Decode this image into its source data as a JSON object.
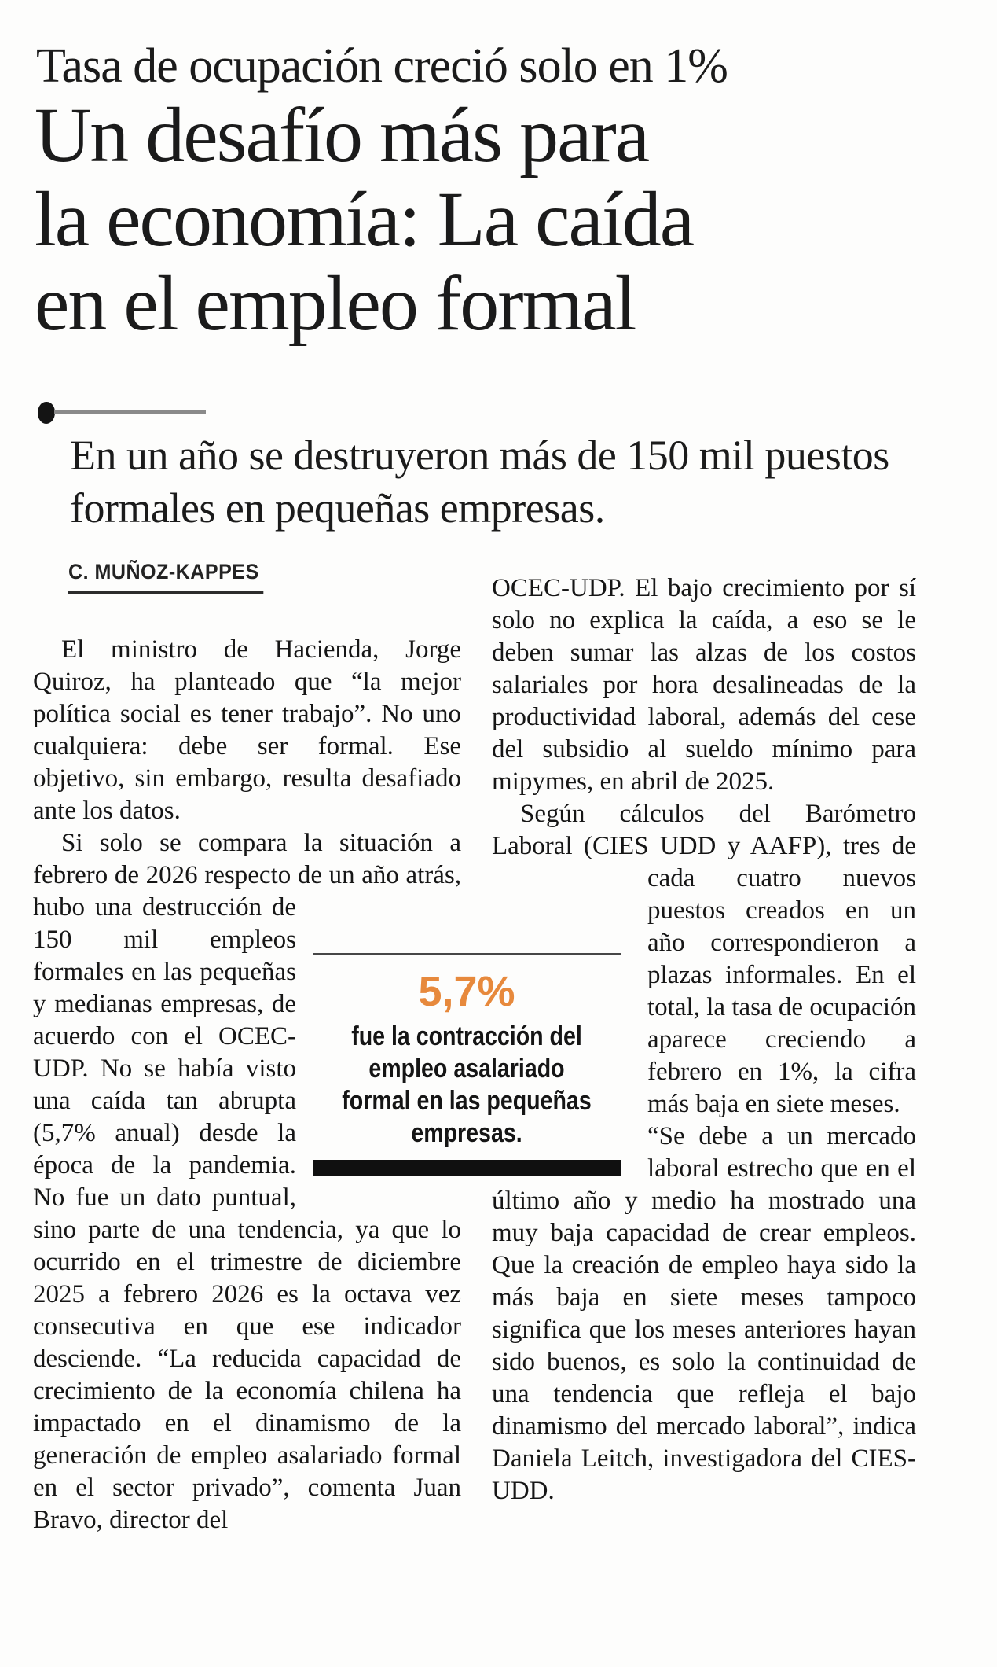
{
  "page": {
    "background": "#fdfdfc",
    "text_color": "#161616",
    "accent_orange": "#e7893c",
    "bar_color": "#101010"
  },
  "kicker": "Tasa de ocupación creció solo en 1%",
  "headline_lines": [
    "Un desafío más para",
    "la economía: La caída",
    "en el empleo formal"
  ],
  "deck": "En un año se destruyeron más de 150 mil puestos formales en pequeñas empresas.",
  "byline": "C. MUÑOZ-KAPPES",
  "article": {
    "left_column": {
      "p1": "El ministro de Hacienda, Jorge Quiroz, ha planteado que “la mejor política social es tener trabajo”. No uno cualquiera: debe ser formal. Ese objetivo, sin embargo, resulta desafiado ante los datos.",
      "p2_before_wrap": "Si solo se compara la situación a febrero de 2026 respecto de un año atrás, hubo una destrucción ",
      "p2_after_wrap": "de 150 mil empleos formales en las pequeñas y medianas empresas, de acuerdo con el OCEC-UDP. No se había visto una caída tan abrupta (5,7% anual) desde la época de la pandemia. No fue un dato puntual, sino parte de una tendencia, ya que lo ocurrido en el trimestre de diciembre 2025 a febrero 2026 es la octava vez consecutiva en que ese indicador desciende. “La reducida capacidad de crecimiento de la economía chilena ha impactado en el dinamismo de la generación de empleo asalariado formal en el sector privado”, comenta Juan Bravo, director del"
    },
    "right_column": {
      "p1": "OCEC-UDP. El bajo crecimiento por sí solo no explica la caída, a eso se le deben sumar las alzas de los costos salariales por hora desalineadas de la productividad laboral, además del cese del subsidio al sueldo mínimo para mipymes, en abril de 2025.",
      "p2_before_wrap": "Según cálculos del Barómetro Laboral (CIES UDD y AAFP), tres de cada cuatro nuevos ",
      "p2_after_wrap": "puestos creados en un año correspondieron a plazas informales. En el total, la tasa de ocupación aparece creciendo a febrero en 1%, la cifra más baja en siete meses.",
      "p3": "“Se debe a un mercado laboral estrecho que en el último año y medio ha mostrado una muy baja capacidad de crear empleos. Que la creación de empleo haya sido la más baja en siete meses tampoco significa que los meses anteriores hayan sido buenos, es solo la continuidad de una tendencia que refleja el bajo dinamismo del mercado laboral”, indica Daniela Leitch, investigadora del CIES-UDD."
    }
  },
  "pullquote": {
    "number": "5,7%",
    "lines": [
      "fue la contracción del",
      "empleo asalariado",
      "formal en las pequeñas",
      "empresas."
    ],
    "full_text": "5,7% fue la contracción del empleo asalariado formal en las pequeñas empresas."
  }
}
